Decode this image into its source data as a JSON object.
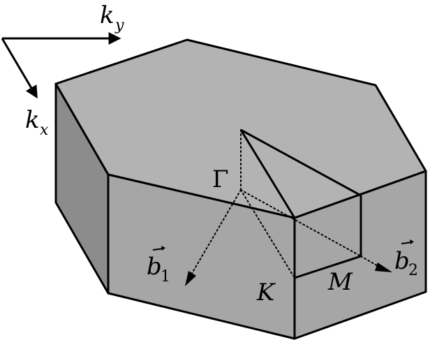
{
  "labels": {
    "ky": "k",
    "ky_sub": "y",
    "kx": "k",
    "kx_sub": "x",
    "gamma": "Γ",
    "b1": "b",
    "b1_sub": "1",
    "b2": "b",
    "b2_sub": "2",
    "K": "K",
    "M": "M"
  },
  "colors": {
    "top_face": "#b3b3b3",
    "front_face": "#a6a6a6",
    "left_face": "#8c8c8c",
    "right_face": "#a6a6a6",
    "edge": "#000000"
  }
}
